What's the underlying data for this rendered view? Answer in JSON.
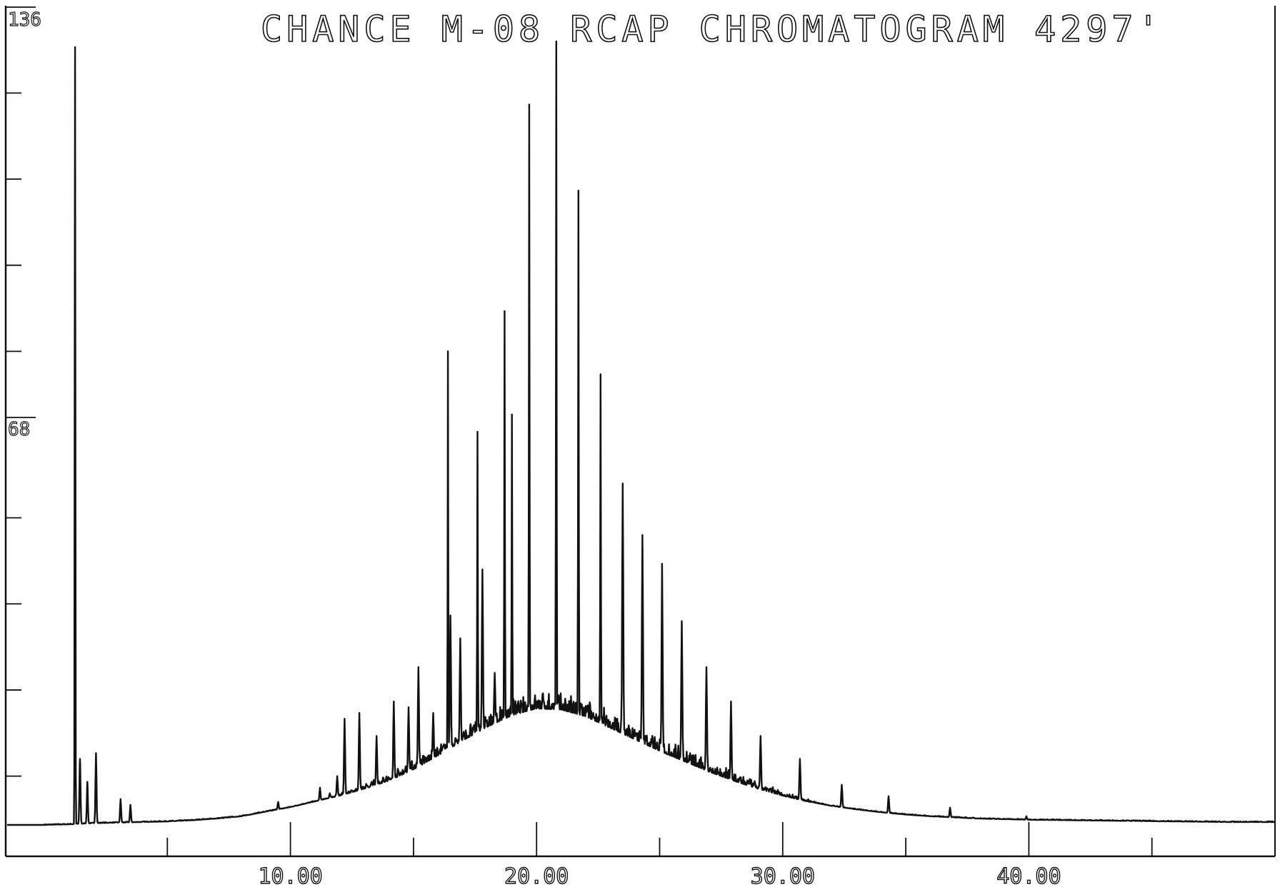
{
  "chart_data": {
    "type": "line",
    "title": "CHANCE M-08 RCAP CHROMATOGRAM 4297'",
    "xlabel": "",
    "ylabel": "",
    "xlim": [
      0,
      50
    ],
    "ylim": [
      0,
      136
    ],
    "x_tick_labels": [
      {
        "value": 10,
        "label": "10.00"
      },
      {
        "value": 20,
        "label": "20.00"
      },
      {
        "value": 30,
        "label": "30.00"
      },
      {
        "value": 40,
        "label": "40.00"
      }
    ],
    "x_minor_ticks": [
      5,
      15,
      25,
      35,
      45
    ],
    "y_tick_labels": [
      {
        "value": 136,
        "label": "136"
      },
      {
        "value": 68,
        "label": "68"
      }
    ],
    "y_minor_ticks": [
      9,
      24,
      39,
      54,
      83,
      98,
      113,
      128
    ],
    "grid": false,
    "legend": "none",
    "colors": {
      "line": "#111111",
      "background": "#ffffff"
    },
    "baseline": [
      [
        0,
        0.5
      ],
      [
        1,
        0.6
      ],
      [
        2,
        0.8
      ],
      [
        3,
        0.9
      ],
      [
        4,
        1.0
      ],
      [
        5,
        1.1
      ],
      [
        6,
        1.3
      ],
      [
        7,
        1.6
      ],
      [
        8,
        2.0
      ],
      [
        9,
        2.8
      ],
      [
        10,
        3.6
      ],
      [
        11,
        4.6
      ],
      [
        12,
        5.6
      ],
      [
        13,
        6.8
      ],
      [
        14,
        8.2
      ],
      [
        15,
        10.2
      ],
      [
        16,
        12.6
      ],
      [
        17,
        15.2
      ],
      [
        18,
        17.6
      ],
      [
        19,
        19.6
      ],
      [
        20,
        20.8
      ],
      [
        21,
        20.6
      ],
      [
        22,
        19.4
      ],
      [
        23,
        17.4
      ],
      [
        24,
        15.4
      ],
      [
        25,
        13.4
      ],
      [
        26,
        11.6
      ],
      [
        27,
        9.8
      ],
      [
        28,
        8.2
      ],
      [
        29,
        6.8
      ],
      [
        30,
        5.6
      ],
      [
        31,
        4.6
      ],
      [
        32,
        3.8
      ],
      [
        33,
        3.2
      ],
      [
        34,
        2.7
      ],
      [
        35,
        2.3
      ],
      [
        36,
        2.0
      ],
      [
        37,
        1.8
      ],
      [
        38,
        1.6
      ],
      [
        39,
        1.5
      ],
      [
        40,
        1.4
      ],
      [
        42,
        1.3
      ],
      [
        44,
        1.2
      ],
      [
        46,
        1.1
      ],
      [
        48,
        1.0
      ],
      [
        50,
        1.0
      ]
    ],
    "peaks": [
      {
        "x": 1.25,
        "y": 136
      },
      {
        "x": 1.45,
        "y": 12
      },
      {
        "x": 1.75,
        "y": 8
      },
      {
        "x": 2.1,
        "y": 13
      },
      {
        "x": 3.1,
        "y": 5
      },
      {
        "x": 3.5,
        "y": 4
      },
      {
        "x": 6.5,
        "y": 1.5
      },
      {
        "x": 9.5,
        "y": 4.5
      },
      {
        "x": 11.2,
        "y": 7
      },
      {
        "x": 11.6,
        "y": 6
      },
      {
        "x": 11.9,
        "y": 9
      },
      {
        "x": 12.2,
        "y": 19
      },
      {
        "x": 12.8,
        "y": 20
      },
      {
        "x": 13.3,
        "y": 8
      },
      {
        "x": 13.5,
        "y": 16
      },
      {
        "x": 14.2,
        "y": 22
      },
      {
        "x": 14.8,
        "y": 21
      },
      {
        "x": 15.2,
        "y": 28
      },
      {
        "x": 15.8,
        "y": 20
      },
      {
        "x": 16.4,
        "y": 83
      },
      {
        "x": 16.5,
        "y": 37
      },
      {
        "x": 16.9,
        "y": 33
      },
      {
        "x": 17.6,
        "y": 69
      },
      {
        "x": 17.8,
        "y": 45
      },
      {
        "x": 18.3,
        "y": 27
      },
      {
        "x": 18.7,
        "y": 90
      },
      {
        "x": 19.0,
        "y": 72
      },
      {
        "x": 19.7,
        "y": 126
      },
      {
        "x": 20.8,
        "y": 137
      },
      {
        "x": 21.7,
        "y": 111
      },
      {
        "x": 22.6,
        "y": 79
      },
      {
        "x": 23.5,
        "y": 60
      },
      {
        "x": 24.3,
        "y": 51
      },
      {
        "x": 25.1,
        "y": 46
      },
      {
        "x": 25.9,
        "y": 36
      },
      {
        "x": 26.9,
        "y": 28
      },
      {
        "x": 27.9,
        "y": 22
      },
      {
        "x": 29.1,
        "y": 16
      },
      {
        "x": 30.7,
        "y": 12
      },
      {
        "x": 32.4,
        "y": 7.5
      },
      {
        "x": 34.3,
        "y": 5.5
      },
      {
        "x": 36.8,
        "y": 3.5
      },
      {
        "x": 39.9,
        "y": 2
      }
    ],
    "noise_region": [
      11,
      32
    ],
    "noise_amplitude": 3.5
  }
}
